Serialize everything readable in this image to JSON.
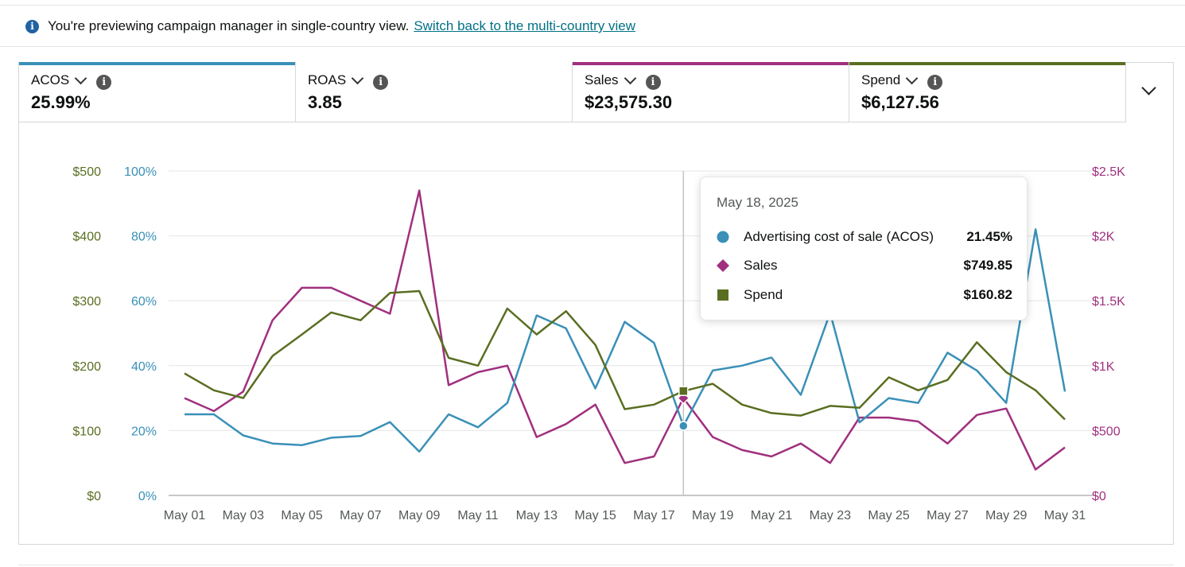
{
  "notice": {
    "text": "You're previewing campaign manager in single-country view.",
    "link": "Switch back to the multi-country view"
  },
  "metrics": [
    {
      "label": "ACOS",
      "value": "25.99%",
      "color": "#3a90b7"
    },
    {
      "label": "ROAS",
      "value": "3.85",
      "color": ""
    },
    {
      "label": "Sales",
      "value": "$23,575.30",
      "color": "#a0307f"
    },
    {
      "label": "Spend",
      "value": "$6,127.56",
      "color": "#5a6e22"
    }
  ],
  "tooltip": {
    "date": "May 18, 2025",
    "rows": [
      {
        "label": "Advertising cost of sale (ACOS)",
        "value": "21.45%",
        "marker": "circle",
        "color": "#3a90b7"
      },
      {
        "label": "Sales",
        "value": "$749.85",
        "marker": "diamond",
        "color": "#a0307f"
      },
      {
        "label": "Spend",
        "value": "$160.82",
        "marker": "square",
        "color": "#5a6e22"
      }
    ]
  },
  "chart_data": {
    "type": "line",
    "x": [
      "May 01",
      "May 02",
      "May 03",
      "May 04",
      "May 05",
      "May 06",
      "May 07",
      "May 08",
      "May 09",
      "May 10",
      "May 11",
      "May 12",
      "May 13",
      "May 14",
      "May 15",
      "May 16",
      "May 17",
      "May 18",
      "May 19",
      "May 20",
      "May 21",
      "May 22",
      "May 23",
      "May 24",
      "May 25",
      "May 26",
      "May 27",
      "May 28",
      "May 29",
      "May 30",
      "May 31"
    ],
    "x_tick_labels": [
      "May 01",
      "May 03",
      "May 05",
      "May 07",
      "May 09",
      "May 11",
      "May 13",
      "May 15",
      "May 17",
      "May 19",
      "May 21",
      "May 23",
      "May 25",
      "May 27",
      "May 29",
      "May 31"
    ],
    "axes": {
      "spend": {
        "side": "left-outer",
        "ticks": [
          "$0",
          "$100",
          "$200",
          "$300",
          "$400",
          "$500"
        ],
        "ylim": [
          0,
          500
        ],
        "color": "#5a6e22"
      },
      "acos": {
        "side": "left-inner",
        "ticks": [
          "0%",
          "20%",
          "40%",
          "60%",
          "80%",
          "100%"
        ],
        "ylim": [
          0,
          100
        ],
        "color": "#3a90b7"
      },
      "sales": {
        "side": "right",
        "ticks": [
          "$0",
          "$500",
          "$1K",
          "$1.5K",
          "$2K",
          "$2.5K"
        ],
        "ylim": [
          0,
          2500
        ],
        "color": "#a0307f"
      }
    },
    "series": [
      {
        "name": "ACOS",
        "axis": "acos",
        "color": "#3a90b7",
        "values": [
          25,
          25,
          18.5,
          16,
          15.5,
          17.8,
          18.3,
          22.6,
          13.5,
          25,
          21,
          28.5,
          55.5,
          51.5,
          33,
          53.5,
          47,
          21.45,
          38.5,
          40,
          42.5,
          31,
          56.3,
          22.5,
          30,
          28.5,
          44,
          38.5,
          28.5,
          82,
          32
        ]
      },
      {
        "name": "Sales",
        "axis": "sales",
        "color": "#a0307f",
        "values": [
          750,
          650,
          800,
          1350,
          1600,
          1600,
          1500,
          1400,
          2350,
          850,
          950,
          1000,
          450,
          550,
          700,
          250,
          300,
          749.85,
          450,
          350,
          300,
          400,
          250,
          600,
          600,
          570,
          400,
          620,
          670,
          200,
          370
        ]
      },
      {
        "name": "Spend",
        "axis": "spend",
        "color": "#5a6e22",
        "values": [
          188,
          162,
          150,
          215,
          248,
          282,
          270,
          312,
          315,
          212,
          200,
          288,
          248,
          284,
          232,
          133,
          140,
          160.82,
          172,
          140,
          127,
          123,
          138,
          135,
          182,
          162,
          178,
          236,
          190,
          162,
          117
        ]
      }
    ],
    "highlight": {
      "x": "May 18"
    },
    "grid": true,
    "legend": "none"
  }
}
